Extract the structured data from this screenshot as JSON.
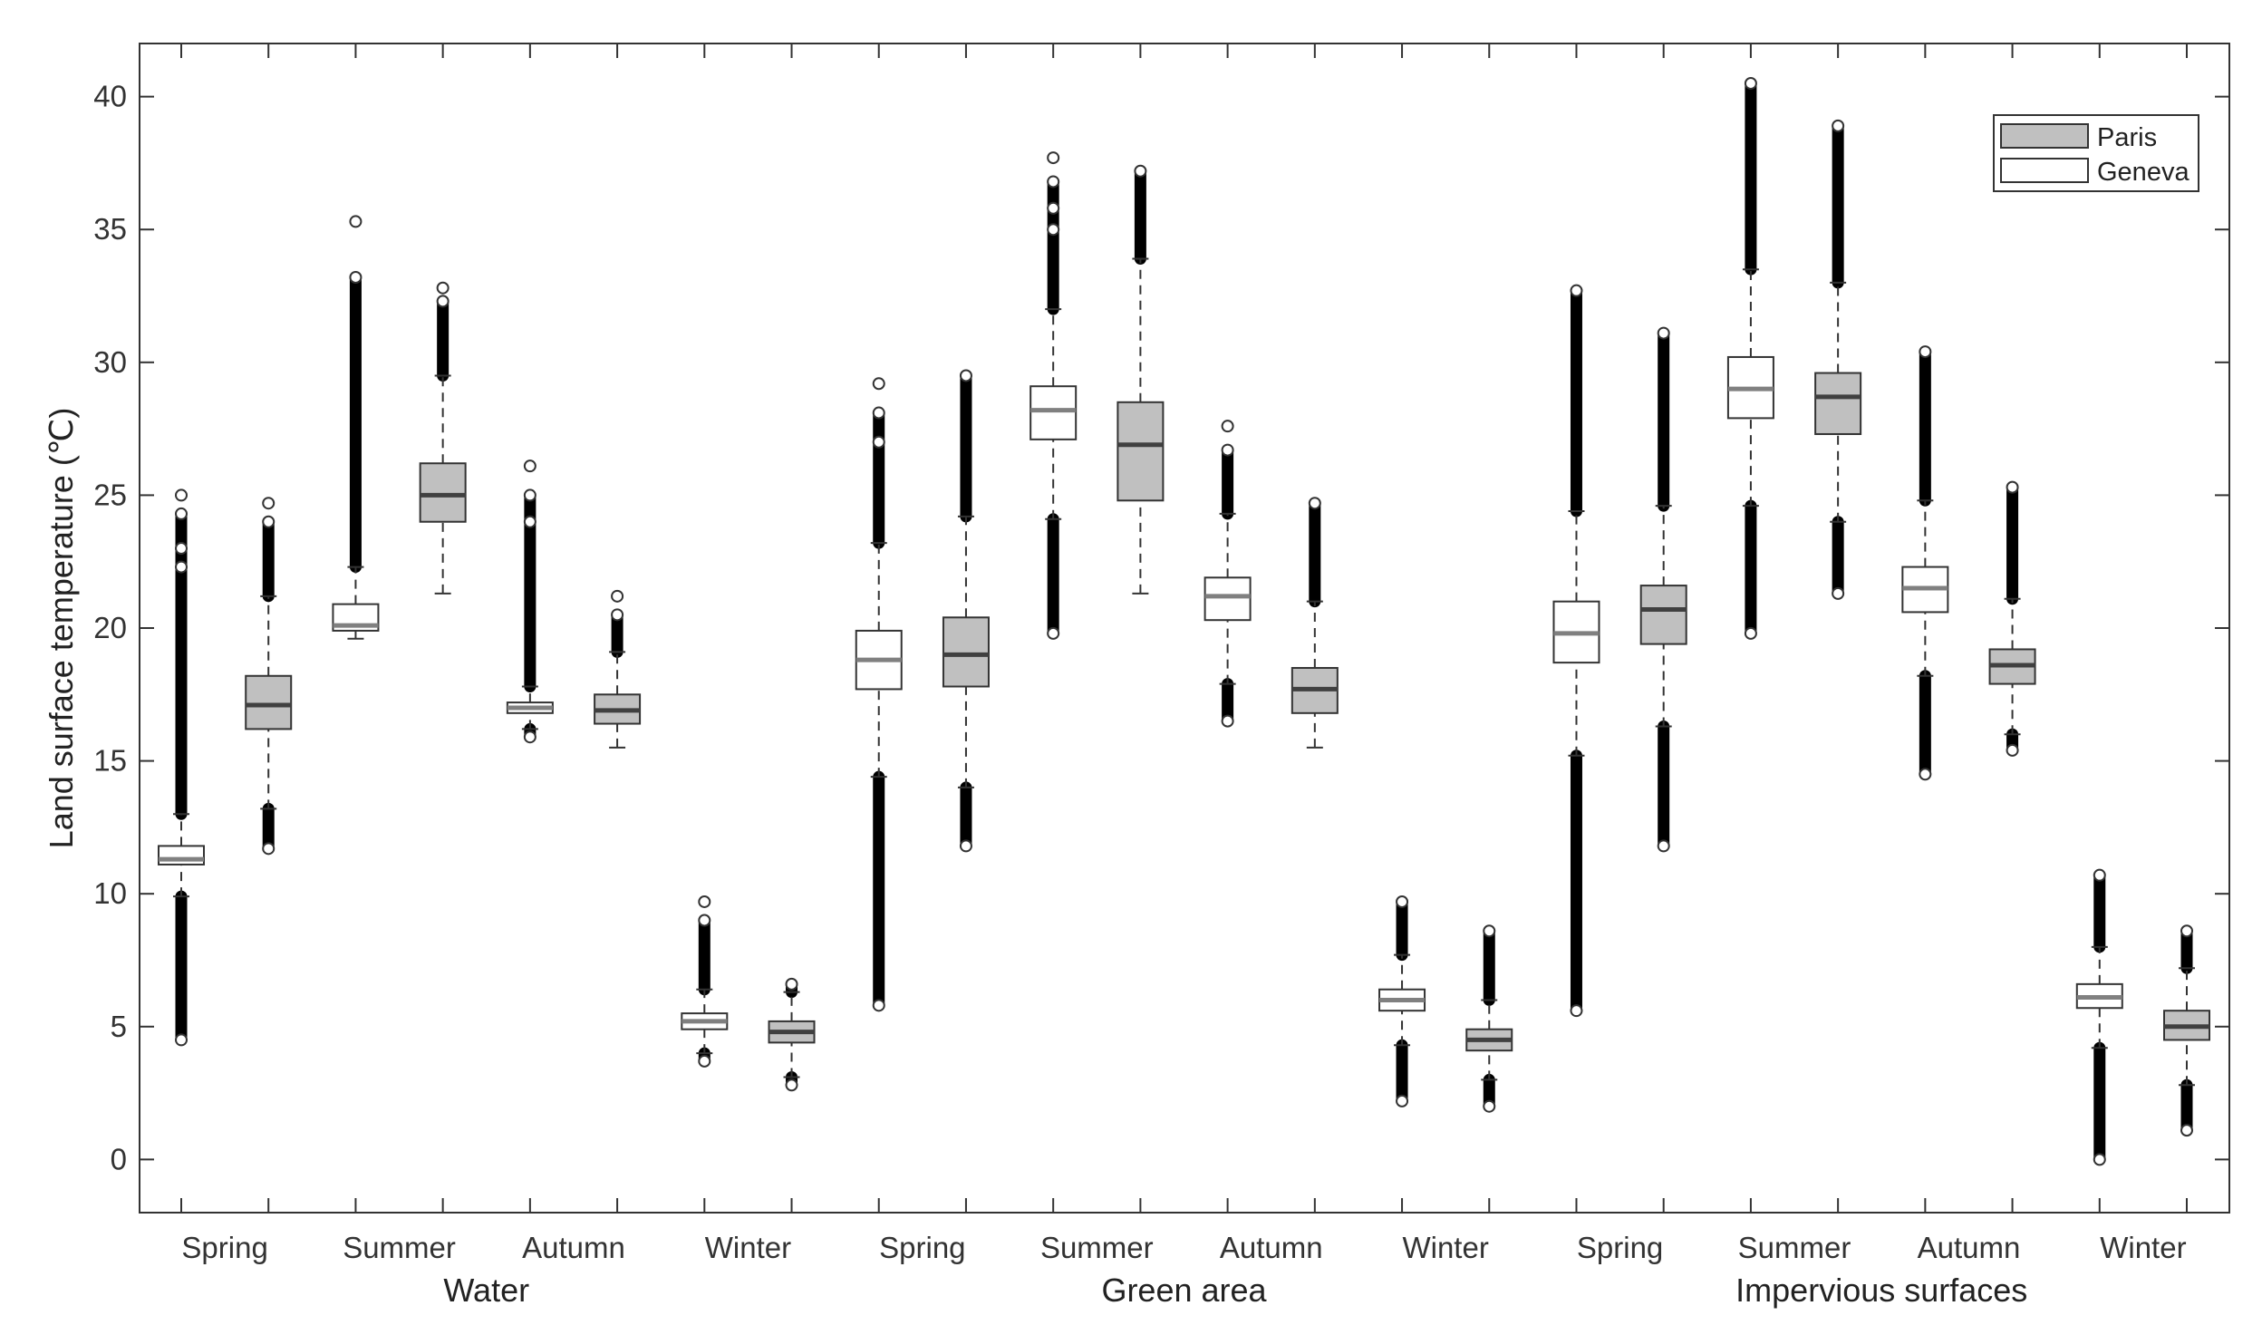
{
  "chart_data": {
    "type": "boxplot",
    "title": "",
    "ylabel": "Land surface temperature (℃)",
    "ylim": [
      -2,
      42
    ],
    "yticks": [
      0,
      5,
      10,
      15,
      20,
      25,
      30,
      35,
      40
    ],
    "groups": [
      "Water",
      "Green area",
      "Impervious surfaces"
    ],
    "seasons": [
      "Spring",
      "Summer",
      "Autumn",
      "Winter"
    ],
    "legend": {
      "placement": "top-right",
      "entries": [
        {
          "name": "Paris",
          "color": "#c0c0c0"
        },
        {
          "name": "Geneva",
          "color": "#ffffff"
        }
      ]
    },
    "colors": {
      "paris_fill": "#c0c0c0",
      "geneva_fill": "#ffffff",
      "paris_median": "#404040",
      "geneva_median": "#808080",
      "stroke": "#333333"
    },
    "series": [
      {
        "group": "Water",
        "season": "Spring",
        "city": "Geneva",
        "q1": 11.1,
        "median": 11.3,
        "q3": 11.8,
        "whisker_low": 9.9,
        "whisker_high": 13.0,
        "outliers_low": [
          4.5,
          9.9
        ],
        "outliers_high": [
          13.0,
          22.3,
          23.0,
          24.3,
          25.0
        ]
      },
      {
        "group": "Water",
        "season": "Spring",
        "city": "Paris",
        "q1": 16.2,
        "median": 17.1,
        "q3": 18.2,
        "whisker_low": 13.2,
        "whisker_high": 21.2,
        "outliers_low": [
          11.7,
          13.2
        ],
        "outliers_high": [
          21.2,
          24.0,
          24.7
        ]
      },
      {
        "group": "Water",
        "season": "Summer",
        "city": "Geneva",
        "q1": 19.9,
        "median": 20.1,
        "q3": 20.9,
        "whisker_low": 19.6,
        "whisker_high": 22.3,
        "outliers_low": [],
        "outliers_high": [
          22.3,
          33.2,
          35.3
        ]
      },
      {
        "group": "Water",
        "season": "Summer",
        "city": "Paris",
        "q1": 24.0,
        "median": 25.0,
        "q3": 26.2,
        "whisker_low": 21.3,
        "whisker_high": 29.5,
        "outliers_low": [],
        "outliers_high": [
          29.5,
          32.3,
          32.8
        ]
      },
      {
        "group": "Water",
        "season": "Autumn",
        "city": "Geneva",
        "q1": 16.8,
        "median": 17.0,
        "q3": 17.2,
        "whisker_low": 16.2,
        "whisker_high": 17.8,
        "outliers_low": [
          15.9,
          16.2
        ],
        "outliers_high": [
          17.8,
          24.0,
          25.0,
          26.1
        ]
      },
      {
        "group": "Water",
        "season": "Autumn",
        "city": "Paris",
        "q1": 16.4,
        "median": 16.9,
        "q3": 17.5,
        "whisker_low": 15.5,
        "whisker_high": 19.1,
        "outliers_low": [],
        "outliers_high": [
          19.1,
          20.5,
          21.2
        ]
      },
      {
        "group": "Water",
        "season": "Winter",
        "city": "Geneva",
        "q1": 4.9,
        "median": 5.2,
        "q3": 5.5,
        "whisker_low": 4.0,
        "whisker_high": 6.4,
        "outliers_low": [
          3.7,
          4.0
        ],
        "outliers_high": [
          6.4,
          9.0,
          9.7
        ]
      },
      {
        "group": "Water",
        "season": "Winter",
        "city": "Paris",
        "q1": 4.4,
        "median": 4.8,
        "q3": 5.2,
        "whisker_low": 3.1,
        "whisker_high": 6.3,
        "outliers_low": [
          2.8,
          3.1
        ],
        "outliers_high": [
          6.3,
          6.6
        ]
      },
      {
        "group": "Green area",
        "season": "Spring",
        "city": "Geneva",
        "q1": 17.7,
        "median": 18.8,
        "q3": 19.9,
        "whisker_low": 14.4,
        "whisker_high": 23.2,
        "outliers_low": [
          5.8,
          14.4
        ],
        "outliers_high": [
          23.2,
          27.0,
          28.1,
          29.2
        ]
      },
      {
        "group": "Green area",
        "season": "Spring",
        "city": "Paris",
        "q1": 17.8,
        "median": 19.0,
        "q3": 20.4,
        "whisker_low": 14.0,
        "whisker_high": 24.2,
        "outliers_low": [
          11.8,
          14.0
        ],
        "outliers_high": [
          24.2,
          29.5
        ]
      },
      {
        "group": "Green area",
        "season": "Summer",
        "city": "Geneva",
        "q1": 27.1,
        "median": 28.2,
        "q3": 29.1,
        "whisker_low": 24.1,
        "whisker_high": 32.0,
        "outliers_low": [
          19.8,
          24.1
        ],
        "outliers_high": [
          32.0,
          35.0,
          35.8,
          36.8,
          37.7
        ]
      },
      {
        "group": "Green area",
        "season": "Summer",
        "city": "Paris",
        "q1": 24.8,
        "median": 26.9,
        "q3": 28.5,
        "whisker_low": 21.3,
        "whisker_high": 33.9,
        "outliers_low": [],
        "outliers_high": [
          33.9,
          37.2
        ]
      },
      {
        "group": "Green area",
        "season": "Autumn",
        "city": "Geneva",
        "q1": 20.3,
        "median": 21.2,
        "q3": 21.9,
        "whisker_low": 17.9,
        "whisker_high": 24.3,
        "outliers_low": [
          16.5,
          17.9
        ],
        "outliers_high": [
          24.3,
          26.7,
          27.6
        ]
      },
      {
        "group": "Green area",
        "season": "Autumn",
        "city": "Paris",
        "q1": 16.8,
        "median": 17.7,
        "q3": 18.5,
        "whisker_low": 15.5,
        "whisker_high": 21.0,
        "outliers_low": [],
        "outliers_high": [
          21.0,
          24.7
        ]
      },
      {
        "group": "Green area",
        "season": "Winter",
        "city": "Geneva",
        "q1": 5.6,
        "median": 6.0,
        "q3": 6.4,
        "whisker_low": 4.3,
        "whisker_high": 7.7,
        "outliers_low": [
          2.2,
          4.3
        ],
        "outliers_high": [
          7.7,
          9.7
        ]
      },
      {
        "group": "Green area",
        "season": "Winter",
        "city": "Paris",
        "q1": 4.1,
        "median": 4.5,
        "q3": 4.9,
        "whisker_low": 3.0,
        "whisker_high": 6.0,
        "outliers_low": [
          2.0,
          3.0
        ],
        "outliers_high": [
          6.0,
          8.6
        ]
      },
      {
        "group": "Impervious surfaces",
        "season": "Spring",
        "city": "Geneva",
        "q1": 18.7,
        "median": 19.8,
        "q3": 21.0,
        "whisker_low": 15.2,
        "whisker_high": 24.4,
        "outliers_low": [
          5.6,
          15.2
        ],
        "outliers_high": [
          24.4,
          32.7
        ]
      },
      {
        "group": "Impervious surfaces",
        "season": "Spring",
        "city": "Paris",
        "q1": 19.4,
        "median": 20.7,
        "q3": 21.6,
        "whisker_low": 16.3,
        "whisker_high": 24.6,
        "outliers_low": [
          11.8,
          16.3
        ],
        "outliers_high": [
          24.6,
          31.1
        ]
      },
      {
        "group": "Impervious surfaces",
        "season": "Summer",
        "city": "Geneva",
        "q1": 27.9,
        "median": 29.0,
        "q3": 30.2,
        "whisker_low": 24.6,
        "whisker_high": 33.5,
        "outliers_low": [
          19.8,
          24.6
        ],
        "outliers_high": [
          33.5,
          40.5
        ]
      },
      {
        "group": "Impervious surfaces",
        "season": "Summer",
        "city": "Paris",
        "q1": 27.3,
        "median": 28.7,
        "q3": 29.6,
        "whisker_low": 24.0,
        "whisker_high": 33.0,
        "outliers_low": [
          21.3,
          24.0
        ],
        "outliers_high": [
          33.0,
          38.9
        ]
      },
      {
        "group": "Impervious surfaces",
        "season": "Autumn",
        "city": "Geneva",
        "q1": 20.6,
        "median": 21.5,
        "q3": 22.3,
        "whisker_low": 18.2,
        "whisker_high": 24.8,
        "outliers_low": [
          14.5,
          18.2
        ],
        "outliers_high": [
          24.8,
          30.4
        ]
      },
      {
        "group": "Impervious surfaces",
        "season": "Autumn",
        "city": "Paris",
        "q1": 17.9,
        "median": 18.6,
        "q3": 19.2,
        "whisker_low": 16.0,
        "whisker_high": 21.1,
        "outliers_low": [
          15.4,
          16.0
        ],
        "outliers_high": [
          21.1,
          25.3
        ]
      },
      {
        "group": "Impervious surfaces",
        "season": "Winter",
        "city": "Geneva",
        "q1": 5.7,
        "median": 6.1,
        "q3": 6.6,
        "whisker_low": 4.2,
        "whisker_high": 8.0,
        "outliers_low": [
          0.0,
          4.2
        ],
        "outliers_high": [
          8.0,
          10.7
        ]
      },
      {
        "group": "Impervious surfaces",
        "season": "Winter",
        "city": "Paris",
        "q1": 4.5,
        "median": 5.0,
        "q3": 5.6,
        "whisker_low": 2.8,
        "whisker_high": 7.2,
        "outliers_low": [
          1.1,
          2.8
        ],
        "outliers_high": [
          7.2,
          8.6
        ]
      }
    ]
  }
}
